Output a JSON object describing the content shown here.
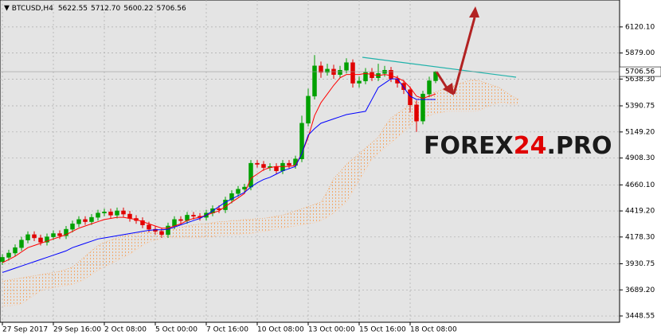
{
  "chart_data": {
    "type": "candlestick",
    "title": "BTCUSD,H4",
    "header_labels": [
      "5622.55",
      "5712.70",
      "5600.22",
      "5706.56"
    ],
    "watermark": [
      "FOREX",
      "24",
      ".PRO"
    ],
    "categories": [
      "27 Sep 2017",
      null,
      null,
      null,
      null,
      null,
      null,
      null,
      "29 Sep 16:00",
      null,
      null,
      null,
      null,
      null,
      null,
      null,
      "2 Oct 08:00",
      null,
      null,
      null,
      null,
      null,
      null,
      null,
      "5 Oct 00:00",
      null,
      null,
      null,
      null,
      null,
      null,
      null,
      "7 Oct 16:00",
      null,
      null,
      null,
      null,
      null,
      null,
      null,
      "10 Oct 08:00",
      null,
      null,
      null,
      null,
      null,
      null,
      null,
      "13 Oct 00:00",
      null,
      null,
      null,
      null,
      null,
      null,
      null,
      "15 Oct 16:00",
      null,
      null,
      null,
      null,
      null,
      null,
      null,
      "18 Oct 08:00",
      null,
      null,
      null,
      null,
      null,
      null,
      null,
      null,
      null,
      null,
      null,
      null,
      null,
      null,
      null,
      null,
      null
    ],
    "open": [
      3950,
      3990,
      4030,
      4080,
      4150,
      4200,
      4170,
      4130,
      4180,
      4210,
      4190,
      4250,
      4300,
      4340,
      4320,
      4360,
      4400,
      4410,
      4380,
      4420,
      4390,
      4350,
      4330,
      4290,
      4250,
      4230,
      4200,
      4280,
      4340,
      4330,
      4380,
      4370,
      4360,
      4400,
      4440,
      4430,
      4520,
      4580,
      4620,
      4640,
      4860,
      4850,
      4820,
      4830,
      4790,
      4860,
      4840,
      4900,
      5230,
      5480,
      5760,
      5700,
      5730,
      5680,
      5720,
      5790,
      5600,
      5620,
      5700,
      5650,
      5690,
      5720,
      5640,
      5600,
      5540,
      5400,
      5250,
      5500,
      5622.55,
      null,
      null,
      null,
      null,
      null,
      null,
      null,
      null,
      null,
      null,
      null,
      null,
      null
    ],
    "high": [
      4020,
      4060,
      4110,
      4180,
      4230,
      4230,
      4200,
      4210,
      4240,
      4240,
      4280,
      4330,
      4370,
      4370,
      4390,
      4430,
      4440,
      4440,
      4450,
      4450,
      4420,
      4380,
      4360,
      4320,
      4280,
      4260,
      4310,
      4370,
      4370,
      4410,
      4410,
      4400,
      4430,
      4470,
      4470,
      4550,
      4610,
      4650,
      4670,
      4890,
      4890,
      4880,
      4860,
      4860,
      4890,
      4890,
      4930,
      5300,
      5550,
      5860,
      5800,
      5780,
      5770,
      5760,
      5830,
      5820,
      5660,
      5740,
      5740,
      5780,
      5760,
      5750,
      5670,
      5630,
      5570,
      5440,
      5530,
      5660,
      5712.7,
      null,
      null,
      null,
      null,
      null,
      null,
      null,
      null,
      null,
      null,
      null,
      null,
      null
    ],
    "low": [
      3920,
      3960,
      4000,
      4050,
      4120,
      4140,
      4100,
      4100,
      4150,
      4160,
      4160,
      4220,
      4270,
      4290,
      4290,
      4330,
      4370,
      4350,
      4350,
      4360,
      4320,
      4300,
      4260,
      4220,
      4200,
      4170,
      4170,
      4250,
      4300,
      4300,
      4340,
      4330,
      4330,
      4370,
      4400,
      4400,
      4490,
      4550,
      4590,
      4610,
      4820,
      4790,
      4790,
      4760,
      4760,
      4810,
      4810,
      4870,
      5200,
      5450,
      5650,
      5670,
      5640,
      5650,
      5690,
      5560,
      5560,
      5590,
      5620,
      5620,
      5660,
      5610,
      5560,
      5500,
      5330,
      5150,
      5220,
      5470,
      5600.22,
      null,
      null,
      null,
      null,
      null,
      null,
      null,
      null,
      null,
      null,
      null,
      null,
      null
    ],
    "close": [
      3990,
      4030,
      4080,
      4150,
      4200,
      4170,
      4130,
      4180,
      4210,
      4190,
      4250,
      4300,
      4340,
      4320,
      4360,
      4400,
      4410,
      4380,
      4420,
      4390,
      4350,
      4330,
      4290,
      4250,
      4230,
      4200,
      4280,
      4340,
      4330,
      4380,
      4370,
      4360,
      4400,
      4440,
      4430,
      4520,
      4580,
      4620,
      4640,
      4860,
      4850,
      4820,
      4830,
      4790,
      4860,
      4840,
      4900,
      5230,
      5480,
      5760,
      5700,
      5730,
      5680,
      5720,
      5790,
      5600,
      5620,
      5700,
      5650,
      5690,
      5720,
      5640,
      5600,
      5540,
      5400,
      5250,
      5500,
      5622.55,
      5706.56,
      null,
      null,
      null,
      null,
      null,
      null,
      null,
      null,
      null,
      null,
      null,
      null,
      null
    ],
    "up_color": "#00a000",
    "down_color": "#e00000",
    "series": [
      {
        "color": "#ff0000",
        "values": [
          3940,
          3970,
          4000,
          4040,
          4080,
          4100,
          4120,
          4140,
          4160,
          4180,
          4200,
          4230,
          4260,
          4280,
          4300,
          4320,
          4340,
          4350,
          4360,
          4360,
          4350,
          4340,
          4320,
          4300,
          4280,
          4260,
          4260,
          4280,
          4300,
          4330,
          4350,
          4360,
          4380,
          4400,
          4420,
          4460,
          4500,
          4540,
          4580,
          4720,
          4760,
          4800,
          4820,
          4830,
          4830,
          4830,
          4840,
          4950,
          5100,
          5300,
          5420,
          5500,
          5580,
          5650,
          5680,
          5680,
          5680,
          5690,
          5680,
          5670,
          5680,
          5670,
          5650,
          5620,
          5560,
          5480,
          5460,
          5480,
          5500,
          null,
          null,
          null,
          null,
          null,
          null,
          null,
          null,
          null,
          null,
          null,
          null,
          null
        ]
      },
      {
        "color": "#0000ff",
        "values": [
          3850,
          3870,
          3890,
          3910,
          3930,
          3950,
          3970,
          3990,
          4010,
          4030,
          4050,
          4080,
          4100,
          4120,
          4140,
          4160,
          4170,
          4180,
          4190,
          4200,
          4210,
          4220,
          4230,
          4240,
          4245,
          4245,
          4250,
          4270,
          4290,
          4310,
          4330,
          4350,
          4380,
          4420,
          4460,
          4500,
          4530,
          4560,
          4590,
          4640,
          4680,
          4710,
          4730,
          4760,
          4790,
          4810,
          4830,
          4950,
          5120,
          5180,
          5230,
          5250,
          5270,
          5290,
          5310,
          5320,
          5330,
          5340,
          5450,
          5560,
          5600,
          5640,
          5640,
          5560,
          5480,
          5450,
          5450,
          5450,
          5450,
          null,
          null,
          null,
          null,
          null,
          null,
          null,
          null,
          null,
          null,
          null,
          null,
          null
        ]
      },
      {
        "color": "#f4a460",
        "values": [
          3770,
          3780,
          3790,
          3800,
          3810,
          3820,
          3830,
          3840,
          3850,
          3860,
          3880,
          3900,
          3950,
          4000,
          4050,
          4100,
          4130,
          4150,
          4170,
          4190,
          4200,
          4210,
          4220,
          4230,
          4240,
          4245,
          4250,
          4260,
          4270,
          4280,
          4290,
          4300,
          4300,
          4310,
          4320,
          4320,
          4330,
          4330,
          4340,
          4340,
          4350,
          4350,
          4360,
          4370,
          4380,
          4400,
          4420,
          4440,
          4460,
          4480,
          4500,
          4600,
          4720,
          4780,
          4850,
          4900,
          4950,
          5000,
          5050,
          5100,
          5200,
          5280,
          5320,
          5360,
          5400,
          5450,
          5480,
          5500,
          5520,
          5540,
          5560,
          5580,
          5600,
          5620,
          5630,
          5620,
          5600,
          5580,
          5560,
          5520,
          5480,
          5450
        ]
      },
      {
        "color": "#ffc8a0",
        "values": [
          3540,
          3540,
          3550,
          3560,
          3600,
          3640,
          3680,
          3700,
          3710,
          3720,
          3730,
          3740,
          3760,
          3790,
          3830,
          3870,
          3900,
          3930,
          3960,
          3990,
          4020,
          4060,
          4100,
          4130,
          4150,
          4160,
          4170,
          4170,
          4170,
          4170,
          4170,
          4170,
          4180,
          4180,
          4190,
          4190,
          4200,
          4200,
          4210,
          4210,
          4220,
          4230,
          4240,
          4250,
          4260,
          4270,
          4280,
          4290,
          4300,
          4310,
          4330,
          4360,
          4400,
          4450,
          4500,
          4600,
          4700,
          4800,
          4900,
          4950,
          5000,
          5050,
          5100,
          5150,
          5200,
          5250,
          5280,
          5300,
          5320,
          5330,
          5340,
          5340,
          5340,
          5340,
          5340,
          5350,
          5380,
          5400,
          5420,
          5420,
          5400,
          5400
        ]
      }
    ],
    "ylim": [
      3390,
      6369
    ],
    "yticks": [
      {
        "value": 6120.1,
        "label": "6120.10"
      },
      {
        "value": 5879,
        "label": "5879.00"
      },
      {
        "value": 5638.3,
        "label": "5638.30"
      },
      5390.75,
      {
        "value": 5149.2,
        "label": "5149.20"
      },
      {
        "value": 4908.3,
        "label": "4908.30"
      },
      {
        "value": 4660.1,
        "label": "4660.10"
      },
      {
        "value": 4419.2,
        "label": "4419.20"
      },
      {
        "value": 4178.3,
        "label": "4178.30"
      },
      3930.75,
      {
        "value": 3689.2,
        "label": "3689.20"
      },
      3448.55
    ],
    "grid": true
  }
}
